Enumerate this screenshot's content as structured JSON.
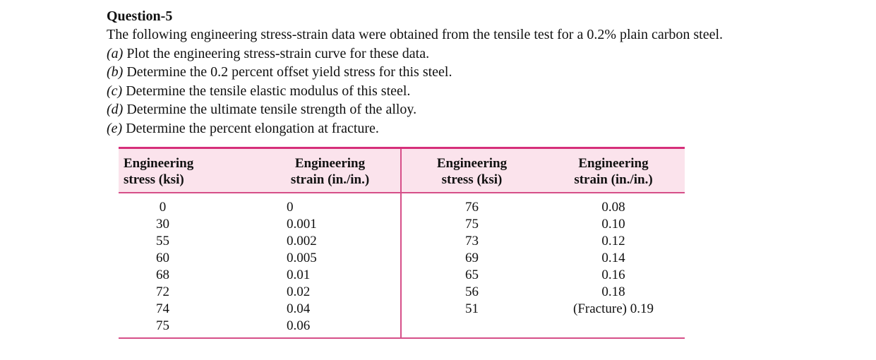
{
  "question": {
    "title": "Question-5",
    "intro": "The following engineering stress-strain data were obtained from the tensile test for a 0.2% plain carbon steel.",
    "parts": [
      {
        "letter": "(a)",
        "text": "Plot the engineering stress-strain curve for these data."
      },
      {
        "letter": "(b)",
        "text": "Determine the 0.2 percent offset yield stress for this steel."
      },
      {
        "letter": "(c)",
        "text": "Determine the tensile elastic modulus of this steel."
      },
      {
        "letter": "(d)",
        "text": "Determine the ultimate tensile strength of the alloy."
      },
      {
        "letter": "(e)",
        "text": "Determine the percent elongation at fracture."
      }
    ]
  },
  "table": {
    "headers": [
      {
        "line1": "Engineering",
        "line2": "stress (ksi)"
      },
      {
        "line1": "Engineering",
        "line2": "strain (in./in.)"
      },
      {
        "line1": "Engineering",
        "line2": "stress (ksi)"
      },
      {
        "line1": "Engineering",
        "line2": "strain (in./in.)"
      }
    ],
    "rows": [
      [
        "0",
        "0",
        "76",
        "0.08"
      ],
      [
        "30",
        "0.001",
        "75",
        "0.10"
      ],
      [
        "55",
        "0.002",
        "73",
        "0.12"
      ],
      [
        "60",
        "0.005",
        "69",
        "0.14"
      ],
      [
        "68",
        "0.01",
        "65",
        "0.16"
      ],
      [
        "72",
        "0.02",
        "56",
        "0.18"
      ],
      [
        "74",
        "0.04",
        "51",
        "(Fracture) 0.19"
      ],
      [
        "75",
        "0.06",
        "",
        ""
      ]
    ],
    "accent_color": "#d62f7a",
    "header_bg": "#fbe3ec"
  }
}
